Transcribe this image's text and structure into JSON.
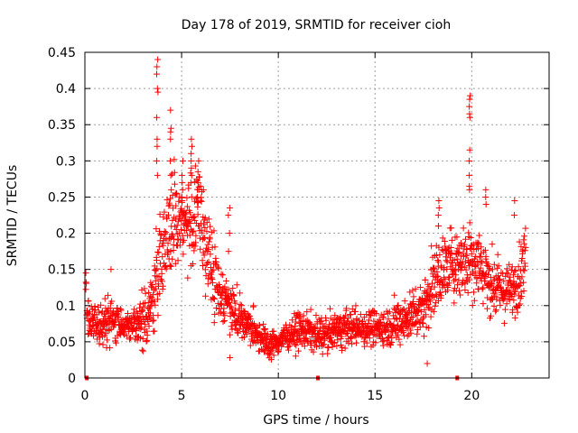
{
  "chart_data": {
    "type": "scatter",
    "title": "Day 178 of 2019, SRMTID for receiver cioh",
    "xlabel": "GPS time / hours",
    "ylabel": "SRMTID / TECUs",
    "xlim": [
      0,
      24
    ],
    "ylim": [
      0,
      0.45
    ],
    "x_ticks": [
      0,
      5,
      10,
      15,
      20
    ],
    "x_tick_labels": [
      "0",
      "5",
      "10",
      "15",
      "20"
    ],
    "y_ticks": [
      0,
      0.05,
      0.1,
      0.15,
      0.2,
      0.25,
      0.3,
      0.35,
      0.4,
      0.45
    ],
    "y_tick_labels": [
      "0",
      "0.05",
      "0.1",
      "0.15",
      "0.2",
      "0.25",
      "0.3",
      "0.35",
      "0.4",
      "0.45"
    ],
    "grid": true,
    "marker": "+",
    "series": [
      {
        "name": "SRMTID",
        "color": "#ff0000",
        "profile_hours": [
          0.0,
          0.2,
          0.5,
          1.0,
          1.5,
          2.0,
          2.5,
          3.0,
          3.4,
          3.7,
          4.0,
          4.3,
          4.6,
          5.0,
          5.3,
          5.6,
          6.0,
          6.4,
          6.8,
          7.2,
          7.6,
          8.0,
          8.5,
          9.0,
          9.5,
          10.0,
          10.5,
          11.0,
          11.5,
          12.0,
          12.5,
          13.0,
          13.5,
          14.0,
          14.5,
          15.0,
          15.5,
          16.0,
          16.5,
          17.0,
          17.5,
          18.0,
          18.5,
          19.0,
          19.5,
          19.8,
          20.0,
          20.3,
          20.6,
          21.0,
          21.5,
          22.0,
          22.5,
          22.8
        ],
        "profile_mean": [
          0.13,
          0.08,
          0.07,
          0.075,
          0.08,
          0.075,
          0.07,
          0.08,
          0.1,
          0.13,
          0.18,
          0.2,
          0.21,
          0.22,
          0.21,
          0.22,
          0.22,
          0.17,
          0.13,
          0.11,
          0.1,
          0.085,
          0.07,
          0.06,
          0.045,
          0.05,
          0.06,
          0.065,
          0.065,
          0.06,
          0.06,
          0.065,
          0.07,
          0.07,
          0.07,
          0.07,
          0.07,
          0.075,
          0.08,
          0.09,
          0.1,
          0.13,
          0.15,
          0.16,
          0.16,
          0.17,
          0.17,
          0.16,
          0.15,
          0.13,
          0.12,
          0.12,
          0.14,
          0.17
        ],
        "profile_spread": [
          0.03,
          0.03,
          0.025,
          0.025,
          0.025,
          0.02,
          0.02,
          0.03,
          0.03,
          0.05,
          0.06,
          0.06,
          0.06,
          0.05,
          0.05,
          0.06,
          0.06,
          0.05,
          0.04,
          0.03,
          0.03,
          0.025,
          0.02,
          0.02,
          0.015,
          0.015,
          0.015,
          0.02,
          0.02,
          0.02,
          0.02,
          0.02,
          0.02,
          0.02,
          0.02,
          0.02,
          0.02,
          0.025,
          0.025,
          0.03,
          0.03,
          0.04,
          0.04,
          0.04,
          0.04,
          0.05,
          0.05,
          0.04,
          0.04,
          0.035,
          0.03,
          0.03,
          0.035,
          0.04
        ],
        "peaks": [
          {
            "hour": 3.75,
            "values": [
              0.44,
              0.43,
              0.42,
              0.4,
              0.395,
              0.36,
              0.33,
              0.32,
              0.3,
              0.28
            ]
          },
          {
            "hour": 4.45,
            "values": [
              0.37,
              0.345,
              0.34,
              0.33,
              0.3,
              0.28,
              0.26
            ]
          },
          {
            "hour": 5.05,
            "values": [
              0.3,
              0.28,
              0.27,
              0.26,
              0.25,
              0.245
            ]
          },
          {
            "hour": 5.5,
            "values": [
              0.33,
              0.32,
              0.31,
              0.3,
              0.29,
              0.28
            ]
          },
          {
            "hour": 5.85,
            "values": [
              0.3,
              0.285,
              0.27,
              0.26,
              0.25
            ]
          },
          {
            "hour": 7.45,
            "values": [
              0.235,
              0.225,
              0.2,
              0.175
            ]
          },
          {
            "hour": 19.9,
            "values": [
              0.39,
              0.385,
              0.375,
              0.365,
              0.36,
              0.315,
              0.3,
              0.28,
              0.265,
              0.26
            ]
          },
          {
            "hour": 18.3,
            "values": [
              0.245,
              0.235,
              0.225,
              0.21
            ]
          },
          {
            "hour": 22.2,
            "values": [
              0.245,
              0.225
            ]
          },
          {
            "hour": 20.75,
            "values": [
              0.26,
              0.25,
              0.24
            ]
          }
        ],
        "zero_points": [
          0.1,
          12.05,
          19.25
        ],
        "zero_point_value": 0.0,
        "isolated_points": [
          {
            "hour": 0.05,
            "value": 0.145
          },
          {
            "hour": 1.35,
            "value": 0.15
          },
          {
            "hour": 7.5,
            "value": 0.028
          },
          {
            "hour": 17.7,
            "value": 0.02
          }
        ]
      }
    ]
  }
}
